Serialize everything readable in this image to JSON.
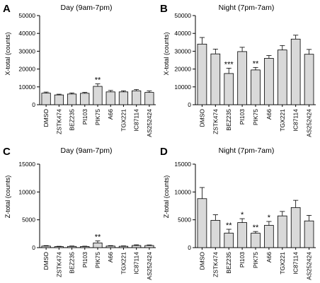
{
  "chart_data": [
    {
      "id": "A",
      "type": "bar",
      "panel_label": "A",
      "title": "Day (9am-7pm)",
      "ylabel": "X-total (counts)",
      "ylim": [
        0,
        50000
      ],
      "yticks": [
        0,
        10000,
        20000,
        30000,
        40000,
        50000
      ],
      "categories": [
        "DMSO",
        "ZSTK474",
        "BEZ235",
        "PI103",
        "PIK75",
        "A66",
        "TGX221",
        "IC87114",
        "AS252424"
      ],
      "values": [
        6500,
        5500,
        6000,
        6400,
        10300,
        7200,
        7200,
        7800,
        6900
      ],
      "errors": [
        600,
        400,
        600,
        500,
        1400,
        800,
        600,
        700,
        800
      ],
      "significance": [
        "",
        "",
        "",
        "",
        "**",
        "",
        "",
        "",
        ""
      ]
    },
    {
      "id": "B",
      "type": "bar",
      "panel_label": "B",
      "title": "Night (7pm-7am)",
      "ylabel": "X-total (counts)",
      "ylim": [
        0,
        50000
      ],
      "yticks": [
        0,
        10000,
        20000,
        30000,
        40000,
        50000
      ],
      "categories": [
        "DMSO",
        "ZSTK474",
        "BEZ235",
        "PI103",
        "PIK75",
        "A66",
        "TGX221",
        "IC87114",
        "AS252424"
      ],
      "values": [
        34000,
        28500,
        17500,
        29800,
        19500,
        26000,
        30700,
        36800,
        28300
      ],
      "errors": [
        3700,
        2700,
        3000,
        2400,
        1400,
        1600,
        2500,
        2200,
        2700
      ],
      "significance": [
        "",
        "",
        "***",
        "",
        "**",
        "",
        "",
        "",
        ""
      ]
    },
    {
      "id": "C",
      "type": "bar",
      "panel_label": "C",
      "title": "Day (9am-7pm)",
      "ylabel": "Z-total (counts)",
      "ylim": [
        0,
        15000
      ],
      "yticks": [
        0,
        5000,
        10000,
        15000
      ],
      "categories": [
        "DMSO",
        "ZSTK474",
        "BEZ235",
        "PI103",
        "PIK75",
        "A66",
        "TGX221",
        "IC87114",
        "AS252424"
      ],
      "values": [
        280,
        180,
        220,
        200,
        850,
        280,
        240,
        380,
        380
      ],
      "errors": [
        80,
        60,
        70,
        60,
        350,
        80,
        70,
        120,
        100
      ],
      "significance": [
        "",
        "",
        "",
        "",
        "**",
        "",
        "",
        "",
        ""
      ]
    },
    {
      "id": "D",
      "type": "bar",
      "panel_label": "D",
      "title": "Night (7pm-7am)",
      "ylabel": "Z-total (counts)",
      "ylim": [
        0,
        15000
      ],
      "yticks": [
        0,
        5000,
        10000,
        15000
      ],
      "categories": [
        "DMSO",
        "ZSTK474",
        "BEZ235",
        "PI103",
        "PIK75",
        "A66",
        "TGX221",
        "IC87114",
        "AS252424"
      ],
      "values": [
        8800,
        4900,
        2600,
        4500,
        2600,
        4000,
        5700,
        7200,
        4800
      ],
      "errors": [
        2000,
        1000,
        700,
        700,
        300,
        700,
        800,
        1300,
        1000
      ],
      "significance": [
        "",
        "",
        "**",
        "*",
        "**",
        "*",
        "",
        "",
        ""
      ]
    }
  ]
}
